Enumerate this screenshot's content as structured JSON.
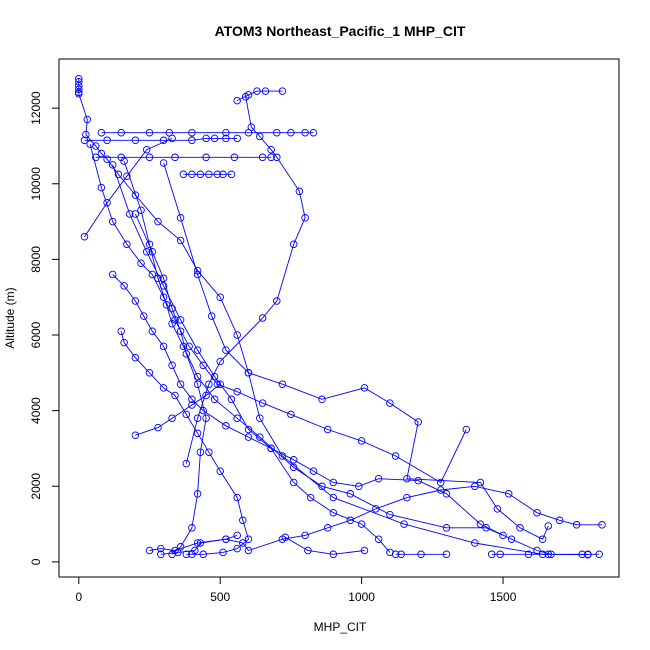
{
  "chart_data": {
    "type": "line",
    "title": "ATOM3 Northeast_Pacific_1 MHP_CIT",
    "xlabel": "MHP_CIT",
    "ylabel": "Altitude (m)",
    "xlim": [
      -70,
      1910
    ],
    "ylim": [
      -400,
      13300
    ],
    "x_ticks": [
      0,
      500,
      1000,
      1500
    ],
    "y_ticks": [
      0,
      2000,
      4000,
      6000,
      8000,
      10000,
      12000
    ],
    "series_color": "#0000ff",
    "marker": "open-circle",
    "series": [
      {
        "values": [
          [
            0,
            12780
          ],
          [
            0,
            12700
          ],
          [
            0,
            12600
          ],
          [
            0,
            12500
          ],
          [
            0,
            12420
          ],
          [
            0,
            12380
          ],
          [
            30,
            11700
          ],
          [
            25,
            11300
          ],
          [
            60,
            11000
          ],
          [
            80,
            10800
          ],
          [
            100,
            10650
          ],
          [
            140,
            10250
          ],
          [
            200,
            9700
          ],
          [
            280,
            9000
          ],
          [
            360,
            8500
          ],
          [
            420,
            7700
          ],
          [
            500,
            7000
          ],
          [
            560,
            6000
          ],
          [
            600,
            5000
          ],
          [
            640,
            3800
          ],
          [
            720,
            2800
          ],
          [
            900,
            1700
          ],
          [
            1150,
            1000
          ],
          [
            1400,
            500
          ],
          [
            1640,
            200
          ],
          [
            1800,
            190
          ]
        ]
      },
      {
        "values": [
          [
            80,
            11350
          ],
          [
            150,
            11350
          ],
          [
            250,
            11350
          ],
          [
            320,
            11350
          ],
          [
            400,
            11350
          ],
          [
            520,
            11350
          ],
          [
            600,
            11350
          ],
          [
            700,
            11350
          ],
          [
            750,
            11350
          ],
          [
            800,
            11350
          ],
          [
            830,
            11350
          ]
        ]
      },
      {
        "values": [
          [
            20,
            11150
          ],
          [
            100,
            11150
          ],
          [
            200,
            11150
          ],
          [
            300,
            11150
          ],
          [
            400,
            11150
          ],
          [
            450,
            11200
          ],
          [
            480,
            11200
          ],
          [
            520,
            11200
          ],
          [
            560,
            11200
          ]
        ]
      },
      {
        "values": [
          [
            60,
            10700
          ],
          [
            150,
            10700
          ],
          [
            250,
            10700
          ],
          [
            340,
            10700
          ],
          [
            450,
            10700
          ],
          [
            550,
            10700
          ],
          [
            650,
            10700
          ],
          [
            680,
            10700
          ]
        ]
      },
      {
        "values": [
          [
            370,
            10250
          ],
          [
            400,
            10250
          ],
          [
            430,
            10250
          ],
          [
            460,
            10250
          ],
          [
            490,
            10250
          ],
          [
            510,
            10250
          ],
          [
            540,
            10250
          ]
        ]
      },
      {
        "values": [
          [
            560,
            12200
          ],
          [
            600,
            12350
          ],
          [
            630,
            12450
          ],
          [
            660,
            12450
          ],
          [
            720,
            12450
          ]
        ]
      },
      {
        "values": [
          [
            590,
            12300
          ],
          [
            610,
            11500
          ],
          [
            640,
            11250
          ],
          [
            680,
            10900
          ],
          [
            700,
            10700
          ],
          [
            780,
            9800
          ],
          [
            800,
            9100
          ],
          [
            760,
            8400
          ],
          [
            700,
            6900
          ],
          [
            650,
            6450
          ],
          [
            500,
            5300
          ],
          [
            460,
            4700
          ],
          [
            420,
            3800
          ],
          [
            380,
            2600
          ]
        ]
      },
      {
        "values": [
          [
            20,
            8600
          ],
          [
            100,
            9500
          ],
          [
            170,
            10200
          ],
          [
            240,
            10900
          ],
          [
            330,
            11200
          ]
        ]
      },
      {
        "values": [
          [
            40,
            11050
          ],
          [
            80,
            9900
          ],
          [
            120,
            9000
          ],
          [
            170,
            8400
          ],
          [
            220,
            7900
          ],
          [
            260,
            7600
          ],
          [
            300,
            7000
          ],
          [
            340,
            6400
          ],
          [
            390,
            5700
          ],
          [
            440,
            5200
          ],
          [
            490,
            4700
          ],
          [
            560,
            4500
          ],
          [
            650,
            4200
          ],
          [
            750,
            3900
          ],
          [
            880,
            3500
          ],
          [
            1000,
            3200
          ],
          [
            1120,
            2800
          ],
          [
            1280,
            2100
          ],
          [
            1370,
            3500
          ]
        ]
      },
      {
        "values": [
          [
            120,
            10500
          ],
          [
            180,
            9200
          ],
          [
            240,
            8200
          ],
          [
            300,
            7300
          ],
          [
            360,
            6400
          ],
          [
            420,
            5600
          ],
          [
            480,
            4900
          ],
          [
            540,
            4300
          ],
          [
            600,
            3500
          ],
          [
            680,
            3000
          ],
          [
            760,
            2100
          ],
          [
            820,
            1700
          ],
          [
            900,
            1300
          ],
          [
            1000,
            1000
          ],
          [
            1060,
            600
          ],
          [
            1100,
            250
          ]
        ]
      },
      {
        "values": [
          [
            160,
            10600
          ],
          [
            220,
            9300
          ],
          [
            250,
            8400
          ],
          [
            280,
            7500
          ],
          [
            310,
            6800
          ],
          [
            330,
            6300
          ],
          [
            370,
            5700
          ],
          [
            420,
            4900
          ],
          [
            480,
            4300
          ],
          [
            560,
            3800
          ],
          [
            640,
            3300
          ],
          [
            760,
            2500
          ],
          [
            860,
            2000
          ],
          [
            960,
            1800
          ],
          [
            1100,
            1250
          ],
          [
            1300,
            900
          ],
          [
            1440,
            900
          ],
          [
            1500,
            700
          ]
        ]
      },
      {
        "values": [
          [
            200,
            9200
          ],
          [
            260,
            8200
          ],
          [
            300,
            7500
          ],
          [
            330,
            6700
          ],
          [
            360,
            6100
          ],
          [
            380,
            5500
          ],
          [
            420,
            4700
          ],
          [
            450,
            3800
          ],
          [
            430,
            2900
          ],
          [
            420,
            1800
          ],
          [
            400,
            900
          ],
          [
            360,
            400
          ],
          [
            330,
            200
          ]
        ]
      },
      {
        "values": [
          [
            300,
            10550
          ],
          [
            360,
            9100
          ],
          [
            420,
            7600
          ],
          [
            470,
            6500
          ],
          [
            520,
            5600
          ],
          [
            600,
            5000
          ],
          [
            720,
            4700
          ],
          [
            860,
            4300
          ],
          [
            1010,
            4600
          ],
          [
            1100,
            4200
          ],
          [
            1200,
            3700
          ],
          [
            1160,
            2200
          ],
          [
            1420,
            2100
          ],
          [
            1480,
            1400
          ],
          [
            1560,
            900
          ],
          [
            1640,
            600
          ],
          [
            1660,
            950
          ]
        ]
      },
      {
        "values": [
          [
            120,
            7600
          ],
          [
            160,
            7300
          ],
          [
            200,
            6900
          ],
          [
            230,
            6500
          ],
          [
            260,
            6100
          ],
          [
            300,
            5700
          ],
          [
            330,
            5200
          ],
          [
            360,
            4700
          ],
          [
            400,
            4300
          ],
          [
            440,
            4000
          ],
          [
            520,
            3600
          ],
          [
            600,
            3300
          ],
          [
            680,
            3000
          ],
          [
            760,
            2700
          ],
          [
            830,
            2400
          ],
          [
            900,
            2100
          ],
          [
            990,
            2000
          ],
          [
            1060,
            2200
          ],
          [
            1200,
            2150
          ],
          [
            1300,
            1800
          ],
          [
            1420,
            1000
          ],
          [
            1530,
            600
          ],
          [
            1620,
            300
          ],
          [
            1670,
            200
          ]
        ]
      },
      {
        "values": [
          [
            150,
            6100
          ],
          [
            160,
            5800
          ],
          [
            200,
            5400
          ],
          [
            250,
            5000
          ],
          [
            300,
            4600
          ],
          [
            340,
            4400
          ],
          [
            380,
            3900
          ],
          [
            420,
            3400
          ],
          [
            460,
            2900
          ],
          [
            500,
            2400
          ],
          [
            560,
            1700
          ],
          [
            580,
            1100
          ],
          [
            600,
            600
          ],
          [
            560,
            350
          ],
          [
            510,
            250
          ],
          [
            440,
            200
          ],
          [
            400,
            200
          ],
          [
            380,
            200
          ]
        ]
      },
      {
        "values": [
          [
            200,
            3350
          ],
          [
            280,
            3550
          ],
          [
            330,
            3800
          ],
          [
            400,
            4150
          ],
          [
            450,
            4400
          ],
          [
            500,
            4700
          ]
        ]
      },
      {
        "values": [
          [
            250,
            300
          ],
          [
            290,
            350
          ],
          [
            340,
            300
          ],
          [
            420,
            500
          ],
          [
            520,
            600
          ],
          [
            580,
            500
          ],
          [
            600,
            300
          ],
          [
            720,
            600
          ],
          [
            800,
            700
          ],
          [
            880,
            900
          ],
          [
            960,
            1100
          ],
          [
            1050,
            1400
          ],
          [
            1160,
            1700
          ],
          [
            1280,
            1900
          ],
          [
            1400,
            2000
          ],
          [
            1520,
            1800
          ],
          [
            1620,
            1300
          ],
          [
            1700,
            1100
          ],
          [
            1760,
            980
          ],
          [
            1850,
            980
          ]
        ]
      },
      {
        "values": [
          [
            730,
            650
          ],
          [
            810,
            300
          ],
          [
            900,
            200
          ],
          [
            1010,
            300
          ]
        ]
      },
      {
        "values": [
          [
            1120,
            200
          ],
          [
            1140,
            200
          ],
          [
            1210,
            200
          ],
          [
            1300,
            200
          ]
        ]
      },
      {
        "values": [
          [
            1460,
            200
          ],
          [
            1490,
            200
          ],
          [
            1590,
            200
          ],
          [
            1660,
            200
          ],
          [
            1780,
            200
          ],
          [
            1800,
            200
          ],
          [
            1840,
            200
          ]
        ]
      },
      {
        "values": [
          [
            290,
            200
          ],
          [
            350,
            250
          ],
          [
            410,
            300
          ],
          [
            430,
            500
          ],
          [
            520,
            600
          ],
          [
            560,
            700
          ]
        ]
      }
    ]
  }
}
